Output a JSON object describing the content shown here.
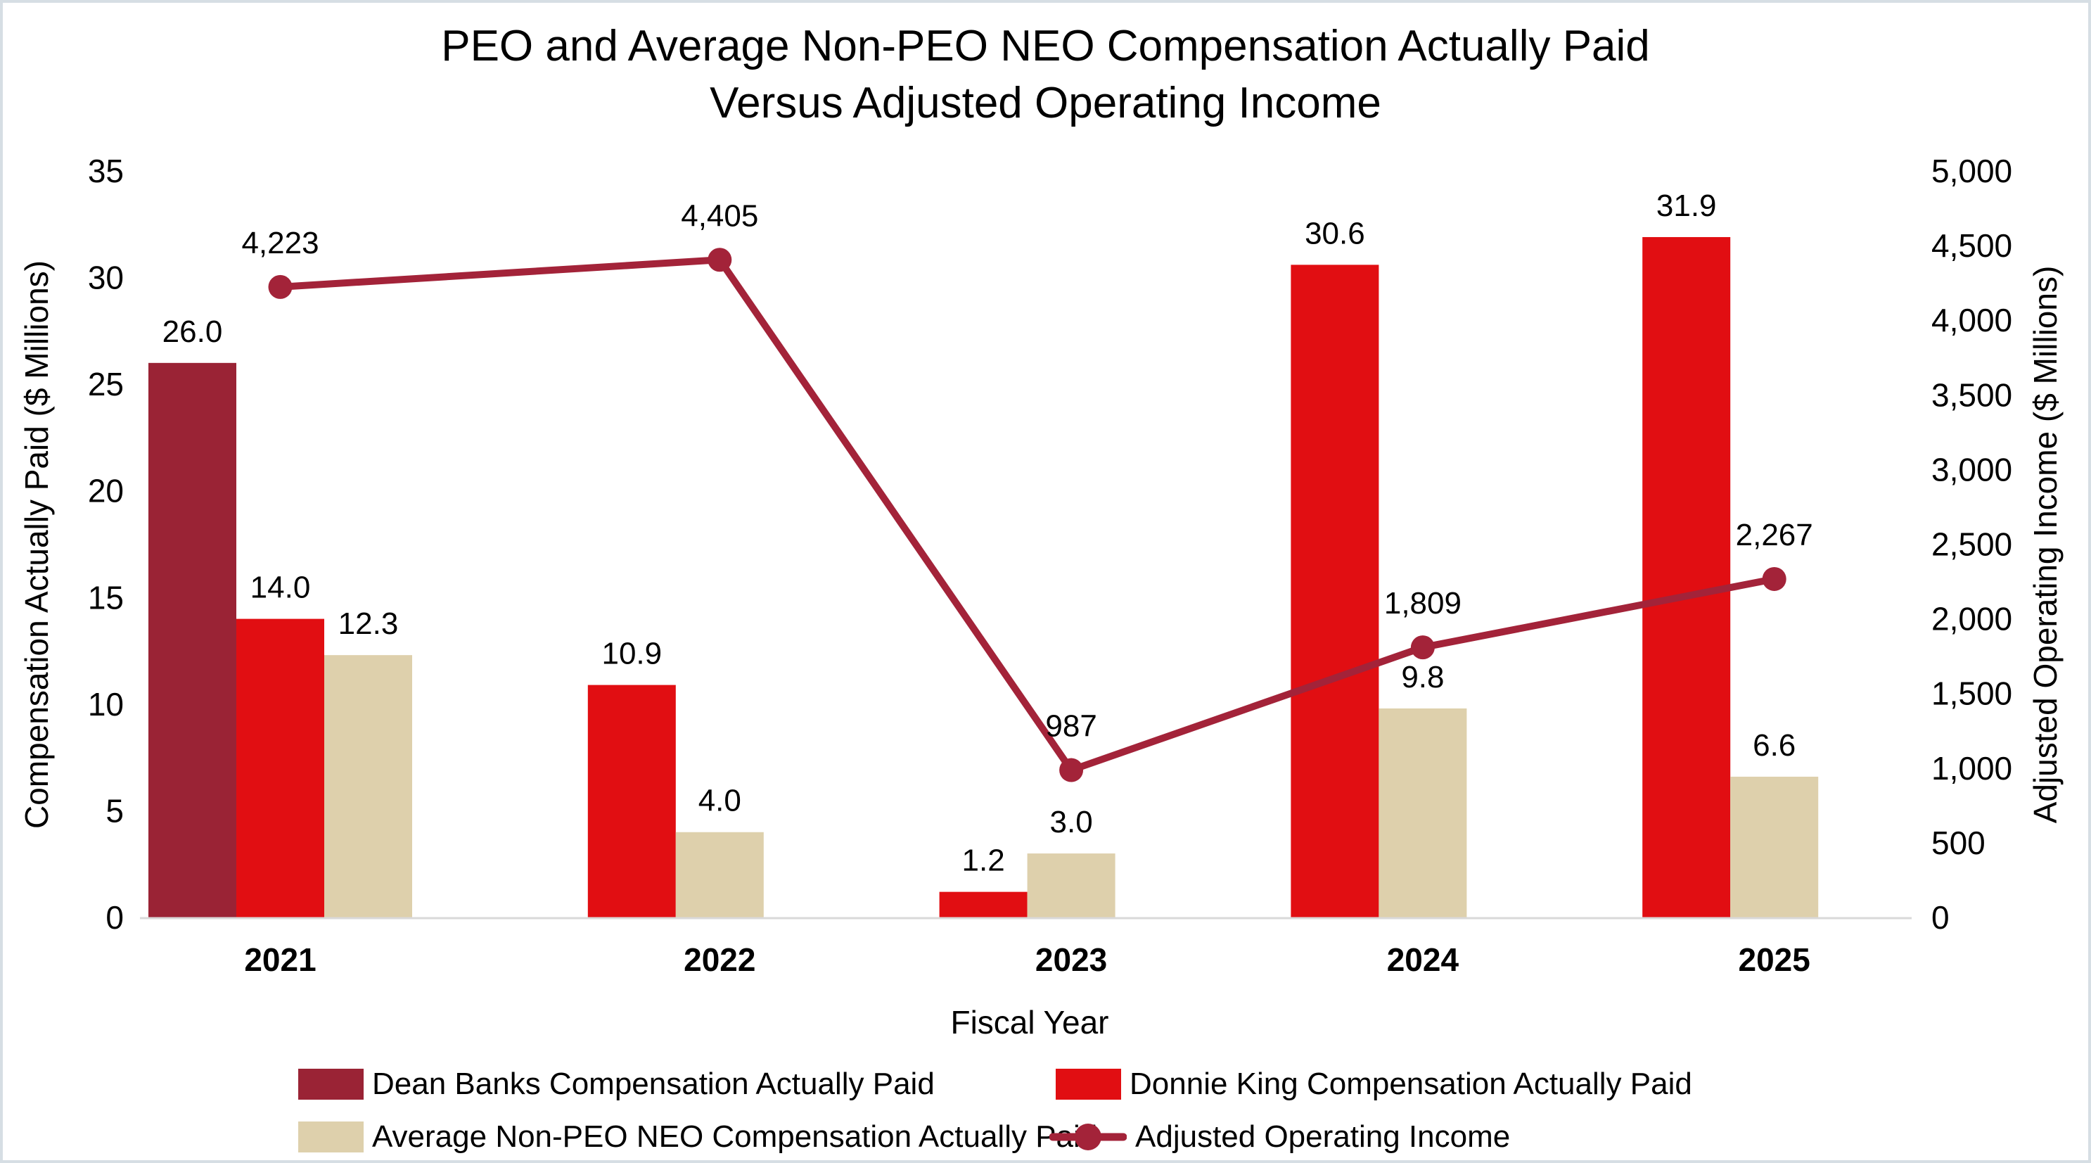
{
  "chart_data": {
    "type": "combo bar+line",
    "title_line1": "PEO and Average Non-PEO NEO Compensation Actually Paid",
    "title_line2": "Versus Adjusted Operating Income",
    "categories": [
      "2021",
      "2022",
      "2023",
      "2024",
      "2025"
    ],
    "x_axis": {
      "title": "Fiscal Year"
    },
    "left_axis": {
      "title": "Compensation Actually Paid ($ Millions)",
      "min": 0,
      "max": 35,
      "ticks": [
        {
          "value": 0,
          "label": "0"
        },
        {
          "value": 5,
          "label": "5"
        },
        {
          "value": 10,
          "label": "10"
        },
        {
          "value": 15,
          "label": "15"
        },
        {
          "value": 20,
          "label": "20"
        },
        {
          "value": 25,
          "label": "25"
        },
        {
          "value": 30,
          "label": "30"
        },
        {
          "value": 35,
          "label": "35"
        }
      ]
    },
    "right_axis": {
      "title": "Adjusted Operating Income ($ Millions)",
      "min": 0,
      "max": 5000,
      "ticks": [
        {
          "value": 0,
          "label": "0"
        },
        {
          "value": 500,
          "label": "500"
        },
        {
          "value": 1000,
          "label": "1,000"
        },
        {
          "value": 1500,
          "label": "1,500"
        },
        {
          "value": 2000,
          "label": "2,000"
        },
        {
          "value": 2500,
          "label": "2,500"
        },
        {
          "value": 3000,
          "label": "3,000"
        },
        {
          "value": 3500,
          "label": "3,500"
        },
        {
          "value": 4000,
          "label": "4,000"
        },
        {
          "value": 4500,
          "label": "4,500"
        },
        {
          "value": 5000,
          "label": "5,000"
        }
      ]
    },
    "series": [
      {
        "id": "dean-banks",
        "name": "Dean Banks Compensation Actually Paid",
        "type": "bar",
        "color": "#9A2335",
        "values": [
          26.0,
          null,
          null,
          null,
          null
        ],
        "labels": [
          "26.0",
          "",
          "",
          "",
          ""
        ]
      },
      {
        "id": "donnie-king",
        "name": "Donnie King Compensation Actually Paid",
        "type": "bar",
        "color": "#E10E12",
        "values": [
          14.0,
          10.9,
          1.2,
          30.6,
          31.9
        ],
        "labels": [
          "14.0",
          "10.9",
          "1.2",
          "30.6",
          "31.9"
        ]
      },
      {
        "id": "avg-non-peo-neo",
        "name": "Average Non-PEO NEO Compensation Actually Paid",
        "type": "bar",
        "color": "#DED0AC",
        "values": [
          12.3,
          4.0,
          3.0,
          9.8,
          6.6
        ],
        "labels": [
          "12.3",
          "4.0",
          "3.0",
          "9.8",
          "6.6"
        ]
      },
      {
        "id": "adjusted-operating-income",
        "name": "Adjusted Operating Income",
        "type": "line",
        "axis": "right",
        "color": "#A32339",
        "values": [
          4223,
          4405,
          987,
          1809,
          2267
        ],
        "labels": [
          "4,223",
          "4,405",
          "987",
          "1,809",
          "2,267"
        ]
      }
    ],
    "layout_hints": {
      "legend_position": "bottom",
      "grid": "off",
      "baseline_color": "#D9D9D9"
    }
  }
}
